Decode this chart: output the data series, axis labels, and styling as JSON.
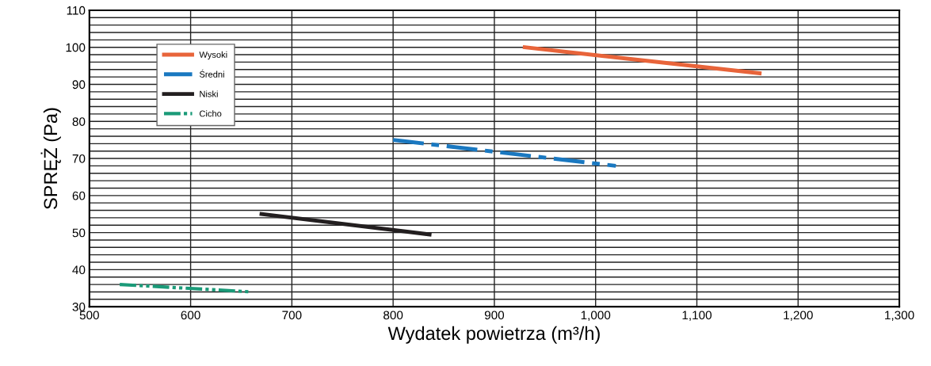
{
  "chart_data": {
    "type": "line",
    "xlabel": "Wydatek powietrza (m³/h)",
    "ylabel": "SPRĘŻ (Pa)",
    "series": [
      {
        "name": "Wysoki",
        "color": "#e8643a",
        "line_style": "solid",
        "x": [
          930,
          1162
        ],
        "values": [
          100,
          93
        ]
      },
      {
        "name": "Średni",
        "color": "#1a78c0",
        "line_style": "dashed",
        "x": [
          800,
          1020
        ],
        "values": [
          75,
          68
        ]
      },
      {
        "name": "Niski",
        "color": "#231f20",
        "line_style": "solid",
        "x": [
          670,
          836
        ],
        "values": [
          55,
          49.5
        ]
      },
      {
        "name": "Cicho",
        "color": "#1a9a78",
        "line_style": "dotted",
        "x": [
          530,
          660
        ],
        "values": [
          36,
          34
        ]
      }
    ],
    "xlim": [
      500,
      1300
    ],
    "ylim": [
      30,
      110
    ],
    "xticks": [
      500,
      600,
      700,
      800,
      900,
      {
        "value": 1000,
        "label": "1,000"
      },
      {
        "value": 1100,
        "label": "1,100"
      },
      {
        "value": 1200,
        "label": "1,200"
      },
      {
        "value": 1300,
        "label": "1,300"
      }
    ],
    "yticks": [
      30,
      {
        "value": 32,
        "label": null
      },
      {
        "value": 34,
        "label": null
      },
      {
        "value": 36,
        "label": null
      },
      {
        "value": 38,
        "label": null
      },
      40,
      {
        "value": 42,
        "label": null
      },
      {
        "value": 44,
        "label": null
      },
      {
        "value": 46,
        "label": null
      },
      {
        "value": 48,
        "label": null
      },
      50,
      {
        "value": 52,
        "label": null
      },
      {
        "value": 54,
        "label": null
      },
      {
        "value": 56,
        "label": null
      },
      {
        "value": 58,
        "label": null
      },
      60,
      {
        "value": 62,
        "label": null
      },
      {
        "value": 64,
        "label": null
      },
      {
        "value": 66,
        "label": null
      },
      {
        "value": 68,
        "label": null
      },
      70,
      {
        "value": 72,
        "label": null
      },
      {
        "value": 74,
        "label": null
      },
      {
        "value": 76,
        "label": null
      },
      {
        "value": 78,
        "label": null
      },
      80,
      {
        "value": 82,
        "label": null
      },
      {
        "value": 84,
        "label": null
      },
      {
        "value": 86,
        "label": null
      },
      {
        "value": 88,
        "label": null
      },
      90,
      {
        "value": 92,
        "label": null
      },
      {
        "value": 94,
        "label": null
      },
      {
        "value": 96,
        "label": null
      },
      {
        "value": 98,
        "label": null
      },
      100,
      {
        "value": 102,
        "label": null
      },
      {
        "value": 104,
        "label": null
      },
      {
        "value": 106,
        "label": null
      },
      {
        "value": 108,
        "label": null
      },
      110
    ],
    "grid": true,
    "legend": "top left",
    "marker": "none"
  }
}
